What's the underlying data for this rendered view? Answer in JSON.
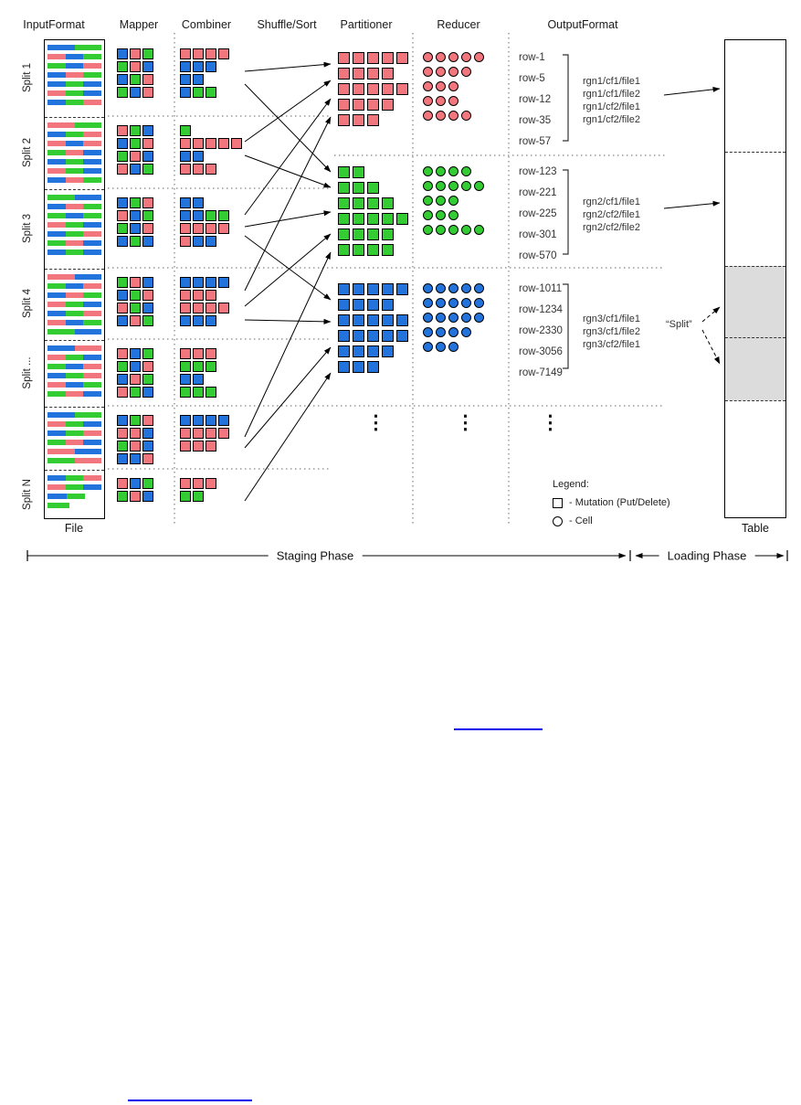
{
  "palette": {
    "red": "#F1767E",
    "green": "#33CC33",
    "blue": "#2273DB",
    "link": "#0000EE",
    "shade": "#DCDCDC"
  },
  "headers": [
    "InputFormat",
    "Mapper",
    "Combiner",
    "Shuffle/Sort",
    "Partitioner",
    "Reducer",
    "OutputFormat"
  ],
  "file_label": "File",
  "table_label": "Table",
  "phases": {
    "staging": "Staging Phase",
    "loading": "Loading Phase"
  },
  "legend": {
    "title": "Legend:",
    "mutation": "- Mutation (Put/Delete)",
    "cell": "- Cell"
  },
  "split_callout": "“Split”",
  "ellipsis": "⋮",
  "splits": [
    {
      "label": "Split 1",
      "bars": [
        "bg",
        "rbg",
        "gbr",
        "brg",
        "bgb",
        "rgb",
        "bgr"
      ],
      "mapper": [
        "brg",
        "grb",
        "bgr",
        "gbr"
      ],
      "combiner": [
        "rrrr",
        "bbb",
        "bb",
        "bgg"
      ]
    },
    {
      "label": "Split 2",
      "bars": [
        "rg",
        "bgr",
        "rbr",
        "grb",
        "bgb",
        "rgb",
        "brg"
      ],
      "mapper": [
        "rgb",
        "bgr",
        "grb",
        "rbg"
      ],
      "combiner": [
        "g",
        "rrrrr",
        "bb",
        "rrr"
      ]
    },
    {
      "label": "Split 3",
      "bars": [
        "gb",
        "brg",
        "gbg",
        "rgb",
        "bgr",
        "grb",
        "bgb"
      ],
      "mapper": [
        "bgr",
        "rbg",
        "gbr",
        "bgb"
      ],
      "combiner": [
        "bb",
        "bbgg",
        "rrrr",
        "rbb"
      ]
    },
    {
      "label": "Split 4",
      "bars": [
        "rb",
        "gbr",
        "brg",
        "rgb",
        "bgr",
        "rbg",
        "gb"
      ],
      "mapper": [
        "grb",
        "bgr",
        "rgb",
        "brg"
      ],
      "combiner": [
        "bbbb",
        "rrr",
        "rrrr",
        "bbb"
      ]
    },
    {
      "label": "Split ...",
      "bars": [
        "br",
        "rgb",
        "gbr",
        "bgr",
        "rbg",
        "grb"
      ],
      "mapper": [
        "rbg",
        "gbr",
        "brg",
        "rgb"
      ],
      "combiner": [
        "rrr",
        "ggg",
        "bb",
        "ggg"
      ]
    },
    {
      "label": "",
      "bars": [
        "bg",
        "rgb",
        "bgr",
        "grb",
        "rb",
        "gr"
      ],
      "mapper": [
        "bgr",
        "rrb",
        "grb",
        "bbr"
      ],
      "combiner": [
        "bbbb",
        "rrrr",
        "rrr"
      ]
    },
    {
      "label": "Split N",
      "bars": [
        "bgr",
        "rgb",
        "bg:70",
        "g:40"
      ],
      "mapper": [
        "rbg",
        "grb"
      ],
      "combiner": [
        "rrr",
        "gg"
      ]
    }
  ],
  "partitions": [
    {
      "key": "red",
      "partitioner_rows": [
        5,
        4,
        5,
        4,
        3
      ],
      "reducer_rows": [
        5,
        4,
        3,
        3,
        4
      ],
      "row_labels": [
        "row-1",
        "row-5",
        "row-12",
        "row-35",
        "row-57"
      ],
      "files": [
        "rgn1/cf1/file1",
        "rgn1/cf1/file2",
        "rgn1/cf2/file1",
        "rgn1/cf2/file2"
      ]
    },
    {
      "key": "green",
      "partitioner_rows": [
        2,
        3,
        4,
        5,
        4,
        4
      ],
      "reducer_rows": [
        4,
        5,
        3,
        3,
        5
      ],
      "row_labels": [
        "row-123",
        "row-221",
        "row-225",
        "row-301",
        "row-570"
      ],
      "files": [
        "rgn2/cf1/file1",
        "rgn2/cf2/file1",
        "rgn2/cf2/file2"
      ]
    },
    {
      "key": "blue",
      "partitioner_rows": [
        5,
        4,
        5,
        5,
        4,
        3
      ],
      "reducer_rows": [
        5,
        5,
        5,
        4,
        3
      ],
      "row_labels": [
        "row-1011",
        "row-1234",
        "row-2330",
        "row-3056",
        "row-7149"
      ],
      "files": [
        "rgn3/cf1/file1",
        "rgn3/cf1/file2",
        "rgn3/cf2/file1"
      ]
    }
  ]
}
